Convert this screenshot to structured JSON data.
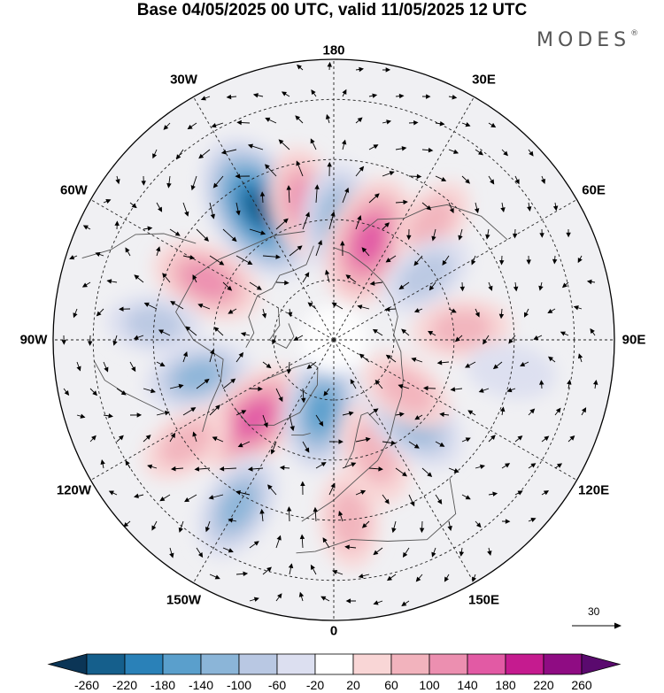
{
  "title": "Base 04/05/2025 00 UTC, valid 11/05/2025 12 UTC",
  "brand": "MODES",
  "brand_mark": "®",
  "longitude_labels": [
    {
      "id": "lon-180",
      "text": "180",
      "deg": 180
    },
    {
      "id": "lon-150e",
      "text": "150E",
      "deg": 150
    },
    {
      "id": "lon-120e",
      "text": "120E",
      "deg": 120
    },
    {
      "id": "lon-90e",
      "text": "90E",
      "deg": 90
    },
    {
      "id": "lon-60e",
      "text": "60E",
      "deg": 60
    },
    {
      "id": "lon-30e",
      "text": "30E",
      "deg": 30
    },
    {
      "id": "lon-0",
      "text": "0",
      "deg": 0
    },
    {
      "id": "lon-30w",
      "text": "30W",
      "deg": -30
    },
    {
      "id": "lon-60w",
      "text": "60W",
      "deg": -60
    },
    {
      "id": "lon-90w",
      "text": "90W",
      "deg": -90
    },
    {
      "id": "lon-120w",
      "text": "120W",
      "deg": -120
    },
    {
      "id": "lon-150w",
      "text": "150W",
      "deg": -150
    }
  ],
  "reference_vector": {
    "value": "30"
  },
  "colorbar": {
    "colors": [
      "#0b3556",
      "#155f8c",
      "#2a81b8",
      "#5a9fcc",
      "#8bb5d8",
      "#b9c8e3",
      "#dcdff0",
      "#ffffff",
      "#f9d6d6",
      "#f2b3bd",
      "#ec8fb0",
      "#e25aa4",
      "#c51b8f",
      "#8f0c83",
      "#5a0a6e"
    ],
    "ticks": [
      "-260",
      "-220",
      "-180",
      "-140",
      "-100",
      "-60",
      "-20",
      "20",
      "60",
      "100",
      "140",
      "180",
      "220",
      "260"
    ]
  },
  "anomaly_blobs": [
    {
      "lon": -150,
      "lat": 52,
      "value": -240
    },
    {
      "lon": -168,
      "lat": 55,
      "value": 110
    },
    {
      "lon": 178,
      "lat": 60,
      "value": -120
    },
    {
      "lon": 160,
      "lat": 64,
      "value": 175
    },
    {
      "lon": 140,
      "lat": 52,
      "value": 60
    },
    {
      "lon": 125,
      "lat": 62,
      "value": -70
    },
    {
      "lon": 95,
      "lat": 58,
      "value": 70
    },
    {
      "lon": 80,
      "lat": 45,
      "value": -40
    },
    {
      "lon": -115,
      "lat": 55,
      "value": 115
    },
    {
      "lon": -95,
      "lat": 45,
      "value": -60
    },
    {
      "lon": -75,
      "lat": 55,
      "value": -100
    },
    {
      "lon": -45,
      "lat": 62,
      "value": 160
    },
    {
      "lon": -10,
      "lat": 72,
      "value": -140
    },
    {
      "lon": 20,
      "lat": 60,
      "value": 90
    },
    {
      "lon": 45,
      "lat": 62,
      "value": -130
    },
    {
      "lon": 55,
      "lat": 68,
      "value": 70
    },
    {
      "lon": -30,
      "lat": 42,
      "value": -110
    },
    {
      "lon": 5,
      "lat": 45,
      "value": 70
    },
    {
      "lon": -55,
      "lat": 45,
      "value": 60
    }
  ]
}
